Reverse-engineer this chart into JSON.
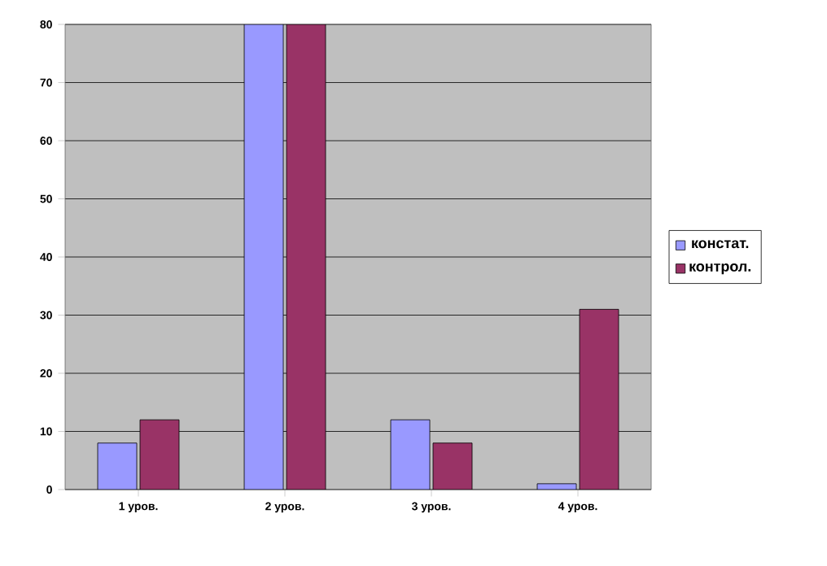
{
  "chart_data": {
    "type": "bar",
    "categories": [
      "1 уров.",
      "2 уров.",
      "3 уров.",
      "4 уров."
    ],
    "series": [
      {
        "name": "констат.",
        "color": "#9999ff",
        "values": [
          8,
          80,
          12,
          1
        ]
      },
      {
        "name": "контрол.",
        "color": "#993366",
        "values": [
          12,
          80,
          8,
          31
        ]
      }
    ],
    "ylim": [
      0,
      80
    ],
    "yticks": [
      0,
      10,
      20,
      30,
      40,
      50,
      60,
      70,
      80
    ],
    "grid": "y",
    "legend": "right"
  }
}
